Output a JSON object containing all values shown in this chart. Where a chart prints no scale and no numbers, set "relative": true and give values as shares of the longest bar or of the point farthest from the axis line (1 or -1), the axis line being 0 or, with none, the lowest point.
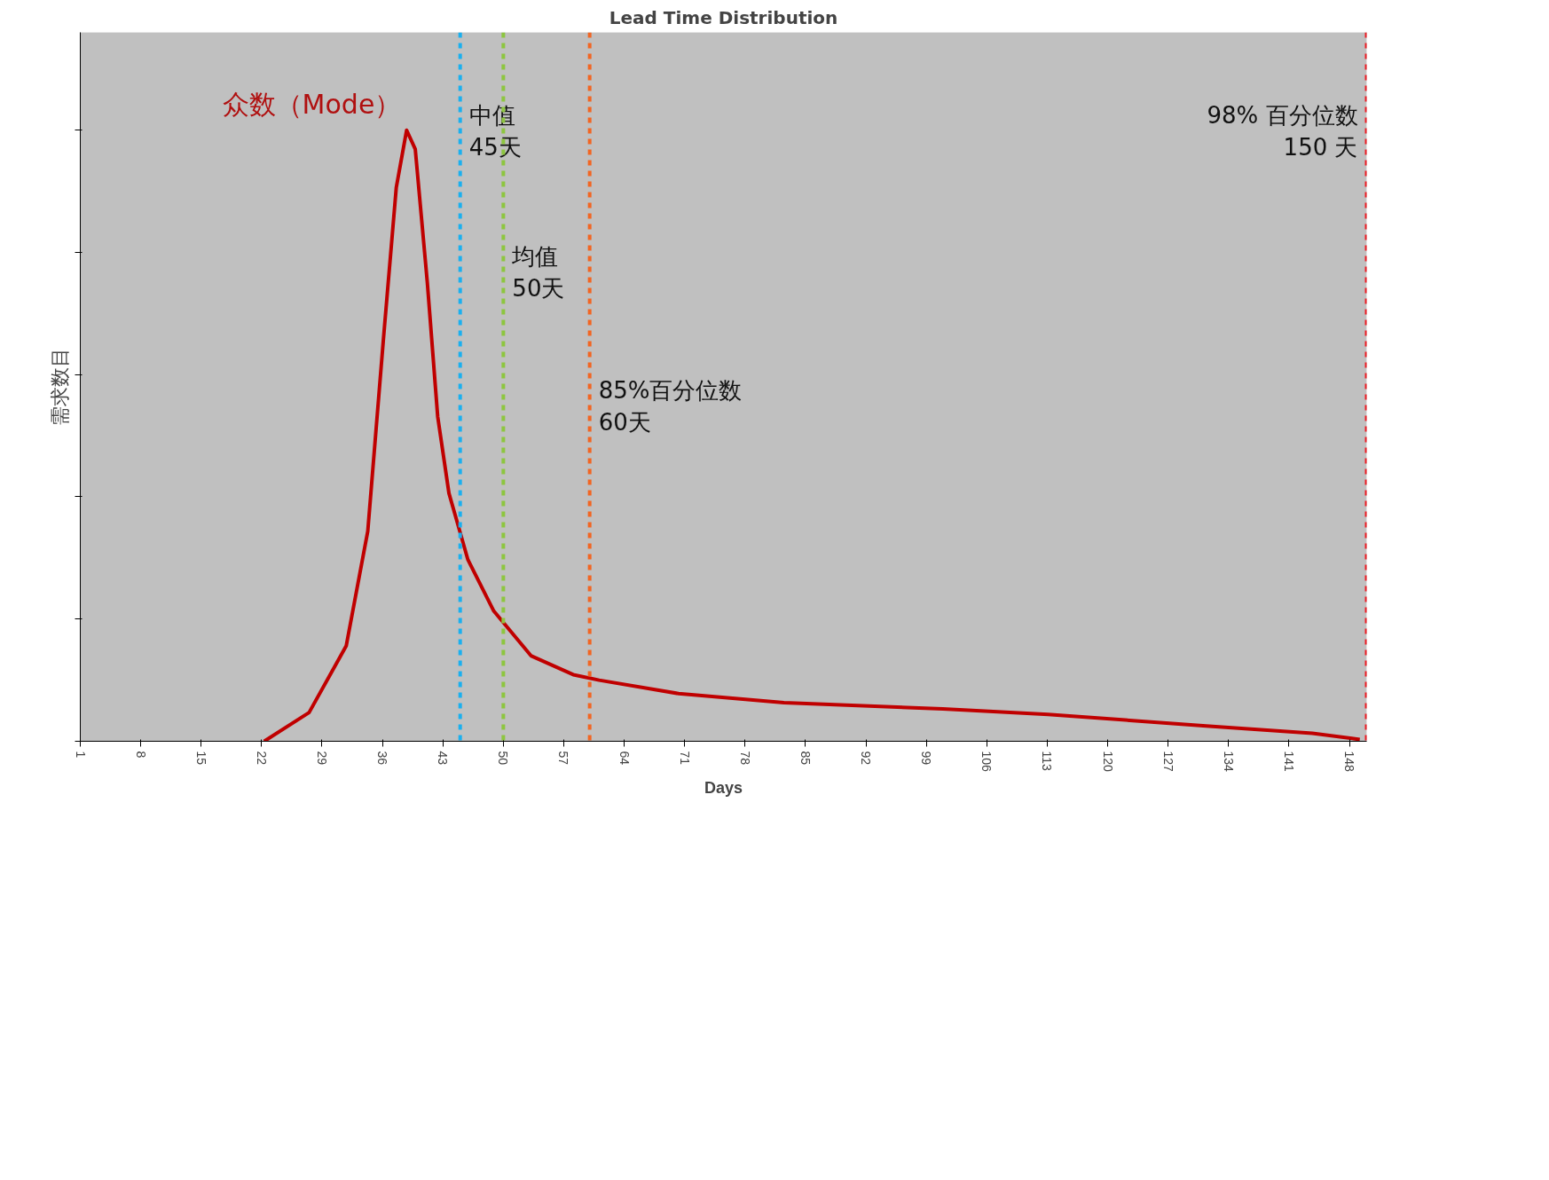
{
  "chart_data": {
    "type": "line",
    "title": "Lead Time Distribution",
    "xlabel": "Days",
    "ylabel": "需求数目",
    "relative": true,
    "xlim": [
      1,
      150
    ],
    "xticks": [
      1,
      8,
      15,
      22,
      29,
      36,
      43,
      50,
      57,
      64,
      71,
      78,
      85,
      92,
      99,
      106,
      113,
      120,
      127,
      134,
      141,
      148
    ],
    "series": [
      {
        "color": "#c00000",
        "x": [
          22.3,
          27.5,
          31.8,
          34.3,
          36.1,
          37.6,
          38.8,
          39.8,
          41.2,
          42.4,
          43.7,
          45.9,
          48.9,
          53.2,
          58.1,
          61.1,
          70.3,
          82.5,
          100.9,
          113.1,
          131.4,
          143.7,
          149.2
        ],
        "values": [
          0,
          0.047,
          0.156,
          0.344,
          0.656,
          0.906,
          1.0,
          0.969,
          0.75,
          0.531,
          0.406,
          0.297,
          0.213,
          0.14,
          0.109,
          0.1,
          0.078,
          0.063,
          0.053,
          0.044,
          0.025,
          0.013,
          0.003
        ]
      }
    ],
    "ref_lines": [
      {
        "axis": "x",
        "value": 45,
        "label": "中值\n45天",
        "color": "#1ab0ef",
        "line_style": "dashed"
      },
      {
        "axis": "x",
        "value": 50,
        "label": "均值\n50天",
        "color": "#8dc63f",
        "line_style": "dashed"
      },
      {
        "axis": "x",
        "value": 60,
        "label": "85%百分位数\n60天",
        "color": "#f26522",
        "line_style": "dashed"
      },
      {
        "axis": "x",
        "value": 150,
        "label": "98% 百分位数\n150 天",
        "color": "#ed1c24",
        "line_style": "dashed"
      }
    ],
    "annotations": [
      {
        "text": "众数（Mode）",
        "x": 38.8,
        "y": 1.0
      }
    ],
    "grid": false,
    "legend": false,
    "line_style": "solid",
    "marker": "none"
  }
}
